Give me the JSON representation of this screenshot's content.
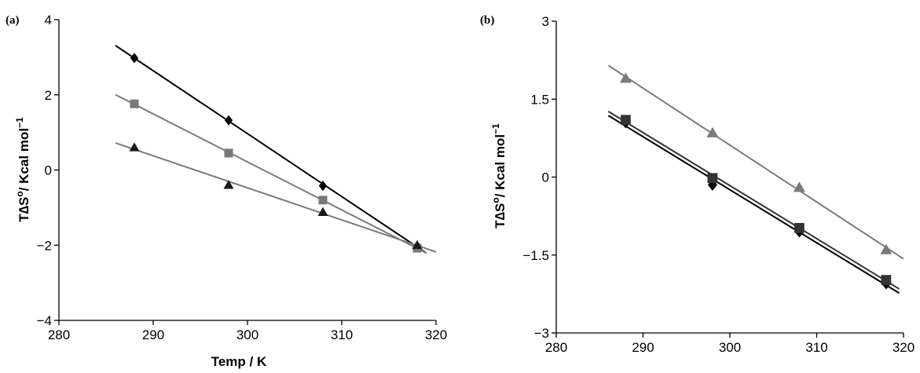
{
  "chart_data": [
    {
      "panel_label": "(a)",
      "type": "scatter",
      "xlabel": "Temp / K",
      "ylabel_main": "T∆S",
      "ylabel_sup": "o",
      "ylabel_unit": "/ Kcal mol",
      "ylabel_unit_sup": "−1",
      "xlim": [
        280,
        320
      ],
      "ylim": [
        -4,
        4
      ],
      "xticks": [
        280,
        290,
        300,
        310,
        320
      ],
      "yticks": [
        -4,
        -2,
        0,
        2,
        4
      ],
      "xtick_labels": [
        "280",
        "290",
        "300",
        "310",
        "320"
      ],
      "ytick_labels": [
        "−4",
        "−2",
        "0",
        "2",
        "4"
      ],
      "series": [
        {
          "marker": "diamond",
          "color": "#000000",
          "x": [
            288,
            298,
            308,
            318
          ],
          "y": [
            2.98,
            1.32,
            -0.42,
            -2.02
          ],
          "fit_x": [
            286,
            319
          ]
        },
        {
          "marker": "square",
          "color": "#7a7a7a",
          "x": [
            288,
            298,
            308,
            318
          ],
          "y": [
            1.76,
            0.45,
            -0.8,
            -2.08
          ],
          "fit_x": [
            286,
            319
          ]
        },
        {
          "marker": "triangle",
          "color": "#1a1a1a",
          "line_color": "#7a7a7a",
          "x": [
            288,
            298,
            308,
            318
          ],
          "y": [
            0.6,
            -0.4,
            -1.12,
            -2.0
          ],
          "fit_x": [
            286,
            320
          ]
        }
      ]
    },
    {
      "panel_label": "(b)",
      "type": "scatter",
      "xlabel": "",
      "ylabel_main": "T∆S",
      "ylabel_sup": "o",
      "ylabel_unit": "/ Kcal mol",
      "ylabel_unit_sup": "−1",
      "xlim": [
        280,
        320
      ],
      "ylim": [
        -3,
        3
      ],
      "xticks": [
        280,
        290,
        300,
        310,
        320
      ],
      "yticks": [
        -3,
        -1.5,
        0,
        1.5,
        3
      ],
      "xtick_labels": [
        "280",
        "290",
        "300",
        "310",
        "320"
      ],
      "ytick_labels": [
        "−3",
        "−1.5",
        "0",
        "1.5",
        "3"
      ],
      "series": [
        {
          "marker": "diamond",
          "color": "#000000",
          "x": [
            288,
            298,
            308,
            318
          ],
          "y": [
            1.05,
            -0.15,
            -1.05,
            -2.05
          ],
          "fit_x": [
            286,
            319.5
          ]
        },
        {
          "marker": "square",
          "color": "#333333",
          "x": [
            288,
            298,
            308,
            318
          ],
          "y": [
            1.1,
            -0.02,
            -0.98,
            -1.98
          ],
          "fit_x": [
            286,
            319.5
          ]
        },
        {
          "marker": "triangle",
          "color": "#7a7a7a",
          "x": [
            288,
            298,
            308,
            318
          ],
          "y": [
            1.9,
            0.85,
            -0.2,
            -1.4
          ],
          "fit_x": [
            286,
            320
          ]
        }
      ]
    }
  ]
}
